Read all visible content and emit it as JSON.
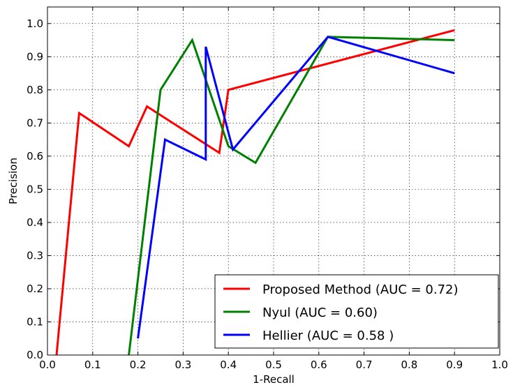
{
  "chart_data": {
    "type": "line",
    "title": "",
    "xlabel": "1-Recall",
    "ylabel": "Precision",
    "xlim": [
      0.0,
      1.0
    ],
    "ylim": [
      0.0,
      1.05
    ],
    "xticks": [
      "0.0",
      "0.1",
      "0.2",
      "0.3",
      "0.4",
      "0.5",
      "0.6",
      "0.7",
      "0.8",
      "0.9",
      "1.0"
    ],
    "yticks": [
      "0.0",
      "0.1",
      "0.2",
      "0.3",
      "0.4",
      "0.5",
      "0.6",
      "0.7",
      "0.8",
      "0.9",
      "1.0"
    ],
    "grid": true,
    "legend_position": "bottom-right",
    "series": [
      {
        "name": "Proposed Method (AUC = 0.72)",
        "color": "#ff0000",
        "points": [
          [
            0.02,
            0.0
          ],
          [
            0.07,
            0.73
          ],
          [
            0.18,
            0.63
          ],
          [
            0.22,
            0.75
          ],
          [
            0.38,
            0.61
          ],
          [
            0.4,
            0.8
          ],
          [
            0.9,
            0.98
          ]
        ]
      },
      {
        "name": "Nyul (AUC = 0.60)",
        "color": "#008000",
        "points": [
          [
            0.18,
            0.0
          ],
          [
            0.25,
            0.8
          ],
          [
            0.32,
            0.95
          ],
          [
            0.4,
            0.63
          ],
          [
            0.46,
            0.58
          ],
          [
            0.62,
            0.96
          ],
          [
            0.9,
            0.95
          ]
        ]
      },
      {
        "name": "Hellier (AUC = 0.58 )",
        "color": "#0000ff",
        "points": [
          [
            0.2,
            0.05
          ],
          [
            0.26,
            0.65
          ],
          [
            0.35,
            0.59
          ],
          [
            0.35,
            0.93
          ],
          [
            0.41,
            0.62
          ],
          [
            0.62,
            0.96
          ],
          [
            0.9,
            0.85
          ]
        ]
      }
    ]
  }
}
